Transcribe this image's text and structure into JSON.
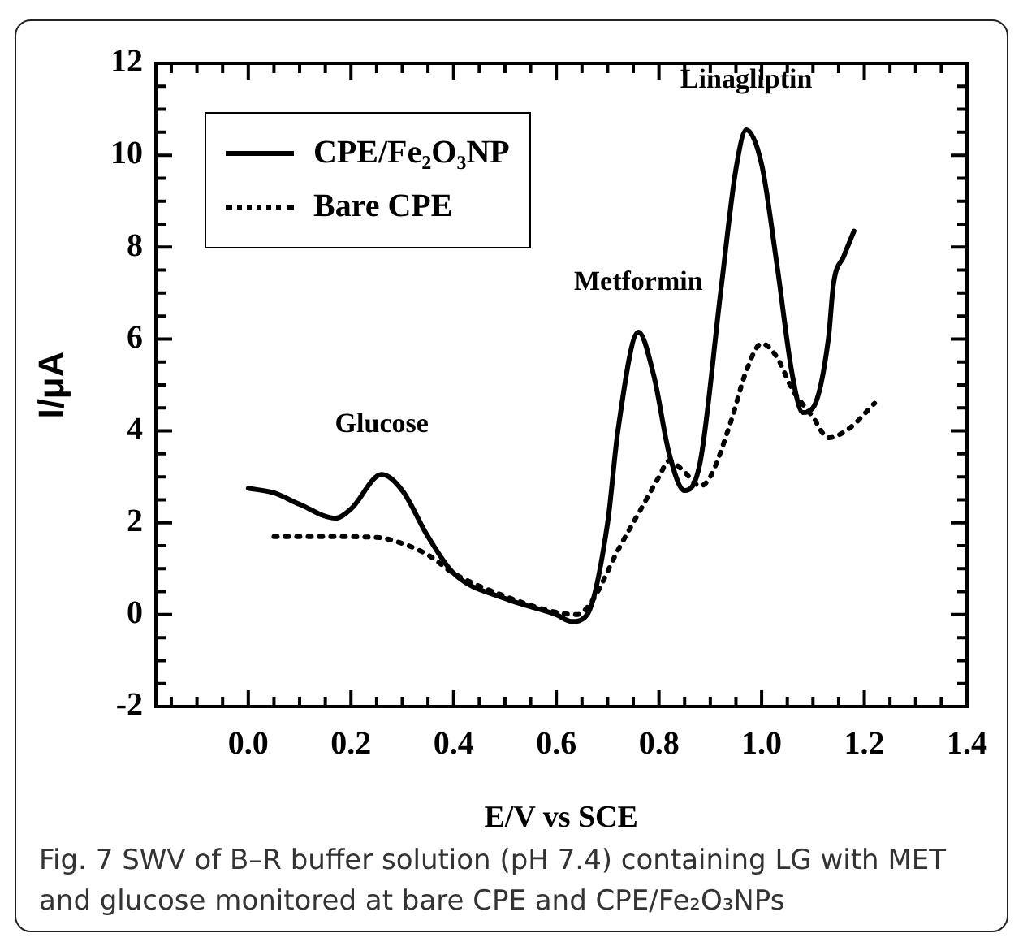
{
  "chart_data": {
    "type": "line",
    "xlabel": "E/V vs SCE",
    "ylabel": "I/μA",
    "xlim": [
      -0.18,
      1.4
    ],
    "xticks": [
      {
        "value": 0,
        "label": "0.0"
      },
      0.2,
      0.4,
      0.6,
      0.8,
      {
        "value": 1,
        "label": "1.0"
      },
      1.2,
      1.4
    ],
    "ylim": [
      -2,
      12
    ],
    "yticks": [
      -2,
      0,
      2,
      4,
      6,
      8,
      10,
      12
    ],
    "legend": "top left",
    "marker": "none",
    "series": [
      {
        "name": "CPE/Fe₂O₃NP",
        "color": "#000000",
        "line_style": "solid",
        "x": [
          0,
          0.05,
          0.1,
          0.17,
          0.2,
          0.26,
          0.3,
          0.35,
          0.4,
          0.5,
          0.6,
          0.63,
          0.66,
          0.7,
          0.72,
          0.76,
          0.79,
          0.82,
          0.85,
          0.88,
          0.92,
          0.95,
          0.97,
          1.0,
          1.03,
          1.06,
          1.08,
          1.1,
          1.13,
          1.14,
          1.16,
          1.18
        ],
        "values": [
          2.75,
          2.65,
          2.4,
          2.1,
          2.3,
          3.05,
          2.7,
          1.7,
          0.9,
          0.35,
          0,
          -0.15,
          0,
          2,
          4,
          6.15,
          5.2,
          3.5,
          2.7,
          3.3,
          7,
          9.7,
          10.55,
          9.8,
          7.6,
          5.2,
          4.4,
          4.5,
          6,
          7.2,
          7.8,
          8.35
        ]
      },
      {
        "name": "Bare CPE",
        "color": "#000000",
        "line_style": "dotted",
        "x": [
          0.05,
          0.15,
          0.25,
          0.3,
          0.35,
          0.4,
          0.5,
          0.6,
          0.64,
          0.67,
          0.72,
          0.77,
          0.8,
          0.82,
          0.85,
          0.88,
          0.9,
          0.94,
          0.97,
          1.0,
          1.03,
          1.06,
          1.1,
          1.13,
          1.17,
          1.22
        ],
        "values": [
          1.7,
          1.7,
          1.68,
          1.55,
          1.3,
          0.9,
          0.4,
          0.05,
          0,
          0.3,
          1.4,
          2.4,
          3,
          3.35,
          3.1,
          2.8,
          3,
          4.2,
          5.3,
          5.9,
          5.6,
          4.9,
          4.3,
          3.85,
          4.05,
          4.6
        ]
      }
    ],
    "annotations": [
      {
        "text": "Glucose",
        "x": 0.26,
        "y": 3.05
      },
      {
        "text": "Metformin",
        "x": 0.76,
        "y": 6.15
      },
      {
        "text": "Linagliptin",
        "x": 0.97,
        "y": 10.55
      },
      "Fig. 7 SWV of B–R buffer solution (pH 7.4) containing LG with MET and glucose monitored at bare CPE and CPE/Fe₂O₃NPs"
    ]
  }
}
